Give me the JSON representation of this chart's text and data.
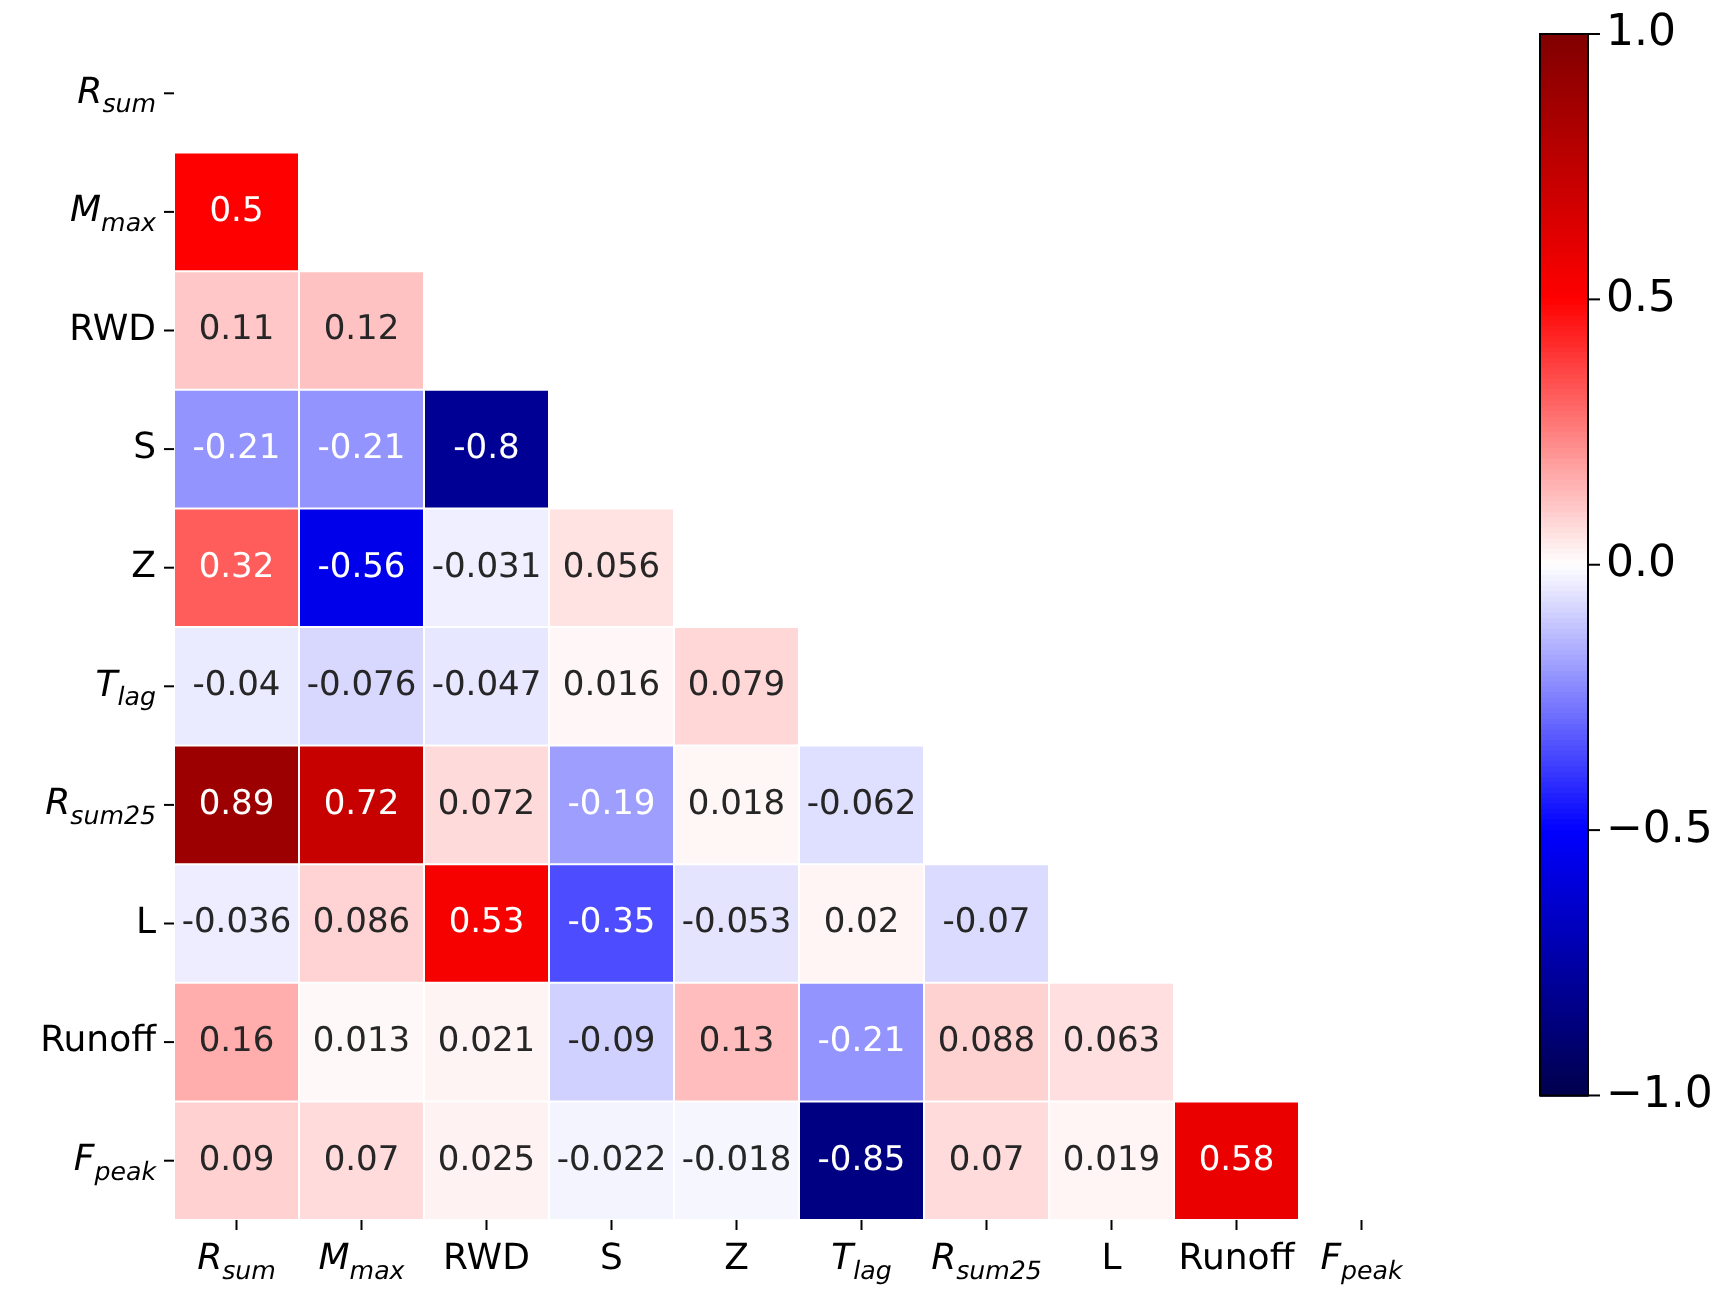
{
  "chart_data": {
    "type": "heatmap",
    "categories": [
      "R$_{sum}$",
      "M$_{max}$",
      "RWD",
      "S",
      "Z",
      "T$_{lag}$",
      "R$_{sum25}$",
      "L",
      "Runoff",
      "F$_{peak}$"
    ],
    "y_categories": [
      "R$_{sum}$",
      "M$_{max}$",
      "RWD",
      "S",
      "Z",
      "T$_{lag}$",
      "R$_{sum25}$",
      "L",
      "Runoff",
      "F$_{peak}$"
    ],
    "cells": [
      [
        null,
        null,
        null,
        null,
        null,
        null,
        null,
        null,
        null,
        null
      ],
      [
        0.5,
        null,
        null,
        null,
        null,
        null,
        null,
        null,
        null,
        null
      ],
      [
        0.11,
        0.12,
        null,
        null,
        null,
        null,
        null,
        null,
        null,
        null
      ],
      [
        -0.21,
        -0.21,
        -0.8,
        null,
        null,
        null,
        null,
        null,
        null,
        null
      ],
      [
        0.32,
        -0.56,
        -0.031,
        0.056,
        null,
        null,
        null,
        null,
        null,
        null
      ],
      [
        -0.04,
        -0.076,
        -0.047,
        0.016,
        0.079,
        null,
        null,
        null,
        null,
        null
      ],
      [
        0.89,
        0.72,
        0.072,
        -0.19,
        0.018,
        -0.062,
        null,
        null,
        null,
        null
      ],
      [
        -0.036,
        0.086,
        0.53,
        -0.35,
        -0.053,
        0.02,
        -0.07,
        null,
        null,
        null
      ],
      [
        0.16,
        0.013,
        0.021,
        -0.09,
        0.13,
        -0.21,
        0.088,
        0.063,
        null,
        null
      ],
      [
        0.09,
        0.07,
        0.025,
        -0.022,
        -0.018,
        -0.85,
        0.07,
        0.019,
        0.58,
        null
      ]
    ],
    "data_labels": true,
    "clim": [
      -1,
      1
    ],
    "cticks": [
      {
        "value": -1,
        "label": "−1.0"
      },
      {
        "value": -0.5,
        "label": "−0.5"
      },
      {
        "value": 0,
        "label": "0.0"
      },
      {
        "value": 0.5,
        "label": "0.5"
      },
      {
        "value": 1,
        "label": "1.0"
      }
    ]
  }
}
